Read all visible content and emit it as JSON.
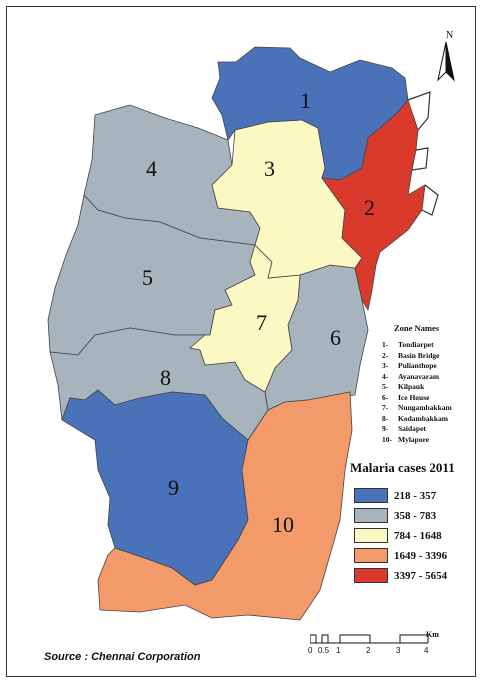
{
  "map": {
    "zones": [
      {
        "id": "1",
        "label": "1",
        "cases_class": "218 - 357",
        "color": "#4a72b8"
      },
      {
        "id": "2",
        "label": "2",
        "cases_class": "3397 - 5654",
        "color": "#d93a2b"
      },
      {
        "id": "3",
        "label": "3",
        "cases_class": "784 - 1648",
        "color": "#fbf8c3"
      },
      {
        "id": "4",
        "label": "4",
        "cases_class": "358 - 783",
        "color": "#a7b3bd"
      },
      {
        "id": "5",
        "label": "5",
        "cases_class": "358 - 783",
        "color": "#a7b3bd"
      },
      {
        "id": "6",
        "label": "6",
        "cases_class": "358 - 783",
        "color": "#a7b3bd"
      },
      {
        "id": "7",
        "label": "7",
        "cases_class": "784 - 1648",
        "color": "#fbf8c3"
      },
      {
        "id": "8",
        "label": "8",
        "cases_class": "358 - 783",
        "color": "#a7b3bd"
      },
      {
        "id": "9",
        "label": "9",
        "cases_class": "218 - 357",
        "color": "#4a72b8"
      },
      {
        "id": "10",
        "label": "10",
        "cases_class": "1649 - 3396",
        "color": "#f29a6a"
      }
    ]
  },
  "north_label": "N",
  "zone_names": {
    "title": "Zone Names",
    "items": [
      {
        "num": "1-",
        "name": "Tondiarpet"
      },
      {
        "num": "2-",
        "name": "Basin Bridge"
      },
      {
        "num": "3-",
        "name": "Pulianthope"
      },
      {
        "num": "4-",
        "name": "Ayanavaram"
      },
      {
        "num": "5-",
        "name": "Kilpauk"
      },
      {
        "num": "6-",
        "name": "Ice House"
      },
      {
        "num": "7-",
        "name": "Nungambakkam"
      },
      {
        "num": "8-",
        "name": "Kodambakkam"
      },
      {
        "num": "9-",
        "name": "Saidapet"
      },
      {
        "num": "10-",
        "name": "Mylapore"
      }
    ]
  },
  "legend": {
    "title": "Malaria cases 2011",
    "items": [
      {
        "label": "218 - 357",
        "color": "#4a72b8"
      },
      {
        "label": "358 - 783",
        "color": "#a7b3bd"
      },
      {
        "label": "784 - 1648",
        "color": "#fbf8c3"
      },
      {
        "label": "1649 - 3396",
        "color": "#f29a6a"
      },
      {
        "label": "3397 - 5654",
        "color": "#d93a2b"
      }
    ]
  },
  "scale": {
    "unit": "Km",
    "ticks": [
      "0",
      "0.5",
      "1",
      "2",
      "3",
      "4"
    ]
  },
  "source": "Source : Chennai Corporation"
}
